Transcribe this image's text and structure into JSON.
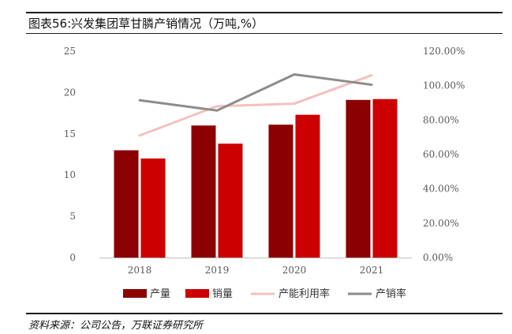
{
  "title": "图表56:兴发集团草甘膦产销情况（万吨,%）",
  "source": "资料来源：公司公告，万联证券研究所",
  "chart_data": {
    "type": "bar",
    "categories": [
      "2018",
      "2019",
      "2020",
      "2021"
    ],
    "series": [
      {
        "name": "产量",
        "kind": "bar",
        "axis": "left",
        "color": "#8b0000",
        "values": [
          13.0,
          16.0,
          16.1,
          19.1
        ]
      },
      {
        "name": "销量",
        "kind": "bar",
        "axis": "left",
        "color": "#cc0000",
        "values": [
          12.0,
          13.8,
          17.3,
          19.2
        ]
      },
      {
        "name": "产能利用率",
        "kind": "line",
        "axis": "right",
        "color": "#f4c0bd",
        "values": [
          71.0,
          88.0,
          89.5,
          106.0
        ]
      },
      {
        "name": "产销率",
        "kind": "line",
        "axis": "right",
        "color": "#8c8c8c",
        "values": [
          91.5,
          85.5,
          106.5,
          100.5
        ]
      }
    ],
    "y_left": {
      "min": 0,
      "max": 25,
      "ticks": [
        "0",
        "5",
        "10",
        "15",
        "20",
        "25"
      ]
    },
    "y_right": {
      "min": 0,
      "max": 120,
      "ticks": [
        "0.00%",
        "20.00%",
        "40.00%",
        "60.00%",
        "80.00%",
        "100.00%",
        "120.00%"
      ]
    },
    "grid": false,
    "legend_position": "bottom"
  }
}
